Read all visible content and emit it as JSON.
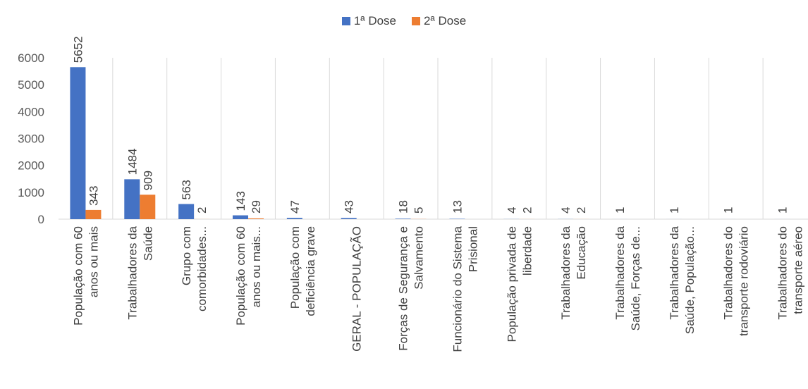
{
  "chart_data": {
    "type": "bar",
    "title": "",
    "xlabel": "",
    "ylabel": "",
    "ylim": [
      0,
      6000
    ],
    "yticks": [
      0,
      1000,
      2000,
      3000,
      4000,
      5000,
      6000
    ],
    "grid": "vertical category separators",
    "legend_position": "top-center",
    "categories": [
      [
        "População com 60",
        "anos ou mais"
      ],
      [
        "Trabalhadores da",
        "Saúde"
      ],
      [
        "Grupo com",
        "comorbidades..."
      ],
      [
        "População com 60",
        "anos ou mais..."
      ],
      [
        "População com",
        "deficiência grave"
      ],
      [
        "GERAL - POPULAÇÃO"
      ],
      [
        "Forças de Segurança e",
        "Salvamento"
      ],
      [
        "Funcionário do Sistema",
        "Prisional"
      ],
      [
        "População privada de",
        "liberdade"
      ],
      [
        "Trabalhadores da",
        "Educação"
      ],
      [
        "Trabalhadores da",
        "Saúde,  Forças de..."
      ],
      [
        "Trabalhadores da",
        "Saúde, População..."
      ],
      [
        "Trabalhadores do",
        "transporte rodoviário"
      ],
      [
        "Trabalhadores do",
        "transporte aéreo"
      ]
    ],
    "series": [
      {
        "name": "1ª Dose",
        "color": "#4472C4",
        "values": [
          5652,
          1484,
          563,
          143,
          47,
          43,
          18,
          13,
          4,
          4,
          1,
          1,
          1,
          1
        ]
      },
      {
        "name": "2ª Dose",
        "color": "#ED7D31",
        "values": [
          343,
          909,
          2,
          29,
          null,
          null,
          5,
          null,
          2,
          2,
          null,
          null,
          null,
          null
        ]
      }
    ]
  }
}
